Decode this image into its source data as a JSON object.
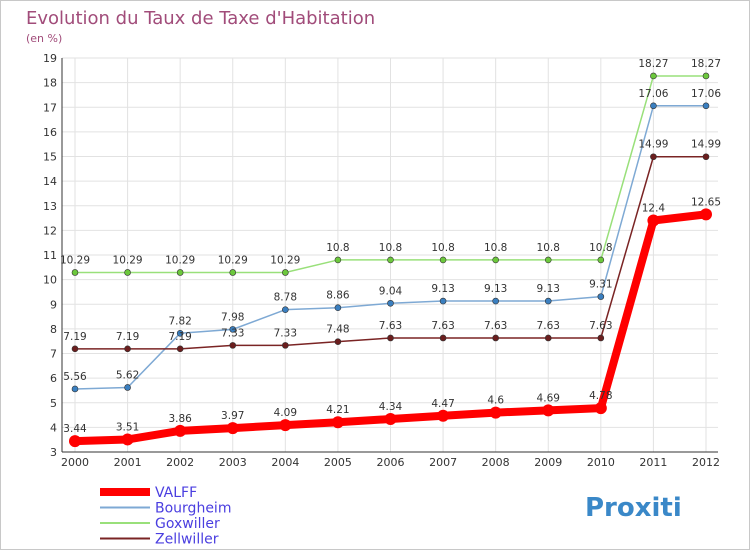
{
  "chart_data": {
    "type": "line",
    "title": "Evolution du Taux de Taxe d'Habitation",
    "subtitle": "(en %)",
    "x": [
      "2000",
      "2001",
      "2002",
      "2003",
      "2004",
      "2005",
      "2006",
      "2007",
      "2008",
      "2009",
      "2010",
      "2011",
      "2012"
    ],
    "ylim": [
      3,
      19
    ],
    "yticks": [
      3,
      4,
      5,
      6,
      7,
      8,
      9,
      10,
      11,
      12,
      13,
      14,
      15,
      16,
      17,
      18,
      19
    ],
    "grid": true,
    "legend_position": "bottom-left",
    "series": [
      {
        "name": "VALFF",
        "color": "#ff0000",
        "marker": "#ff0000",
        "labels": [
          "3.44",
          "3.51",
          "3.86",
          "3.97",
          "4.09",
          "4.21",
          "4.34",
          "4.47",
          "4.6",
          "4.69",
          "4.78",
          "12.4",
          "12.65"
        ],
        "values": [
          3.44,
          3.51,
          3.86,
          3.97,
          4.09,
          4.21,
          4.34,
          4.47,
          4.6,
          4.69,
          4.78,
          12.4,
          12.65
        ]
      },
      {
        "name": "Bourgheim",
        "color": "#7ea9d4",
        "marker": "#3a7fc0",
        "labels": [
          "5.56",
          "5.62",
          "7.82",
          "7.98",
          "8.78",
          "8.86",
          "9.04",
          "9.13",
          "9.13",
          "9.13",
          "9.31",
          "17.06",
          "17.06"
        ],
        "values": [
          5.56,
          5.62,
          7.82,
          7.98,
          8.78,
          8.86,
          9.04,
          9.13,
          9.13,
          9.13,
          9.31,
          17.06,
          17.06
        ]
      },
      {
        "name": "Goxwiller",
        "color": "#99e07a",
        "marker": "#6cc83c",
        "labels": [
          "10.29",
          "10.29",
          "10.29",
          "10.29",
          "10.29",
          "10.8",
          "10.8",
          "10.8",
          "10.8",
          "10.8",
          "10.8",
          "18.27",
          "18.27"
        ],
        "values": [
          10.29,
          10.29,
          10.29,
          10.29,
          10.29,
          10.8,
          10.8,
          10.8,
          10.8,
          10.8,
          10.8,
          18.27,
          18.27
        ]
      },
      {
        "name": "Zellwiller",
        "color": "#7a2424",
        "marker": "#6b1e1e",
        "labels": [
          "7.19",
          "7.19",
          "7.19",
          "7.33",
          "7.33",
          "7.48",
          "7.63",
          "7.63",
          "7.63",
          "7.63",
          "7.63",
          "14.99",
          "14.99"
        ],
        "values": [
          7.19,
          7.19,
          7.19,
          7.33,
          7.33,
          7.48,
          7.63,
          7.63,
          7.63,
          7.63,
          7.63,
          14.99,
          14.99
        ]
      }
    ]
  },
  "branding": {
    "logo_text": "Proxiti"
  }
}
